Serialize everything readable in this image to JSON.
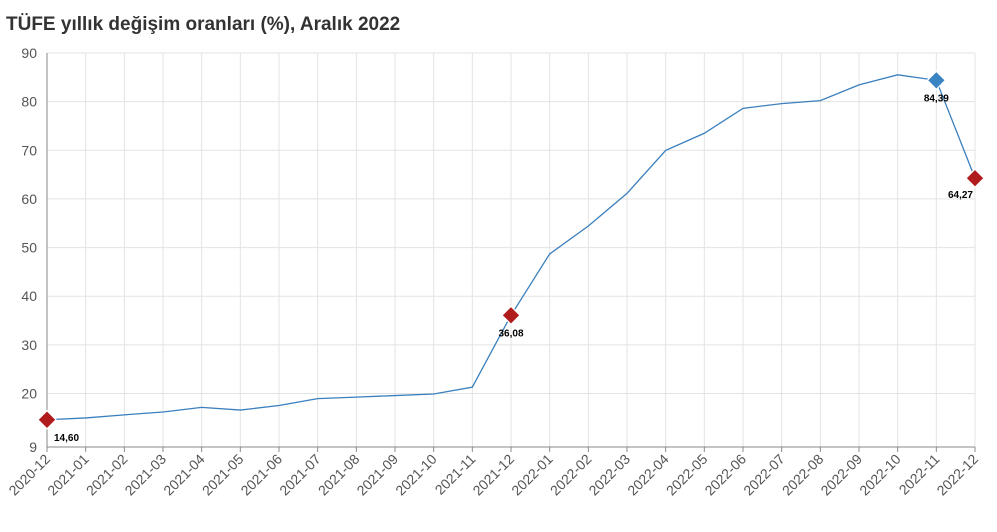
{
  "chart_data": {
    "type": "line",
    "title": "TÜFE yıllık değişim oranları (%), Aralık 2022",
    "xlabel": "",
    "ylabel": "",
    "ylim": [
      9,
      90
    ],
    "yticks": [
      9,
      20,
      30,
      40,
      50,
      60,
      70,
      80,
      90
    ],
    "grid": true,
    "legend": "none",
    "categories": [
      "2020-12",
      "2021-01",
      "2021-02",
      "2021-03",
      "2021-04",
      "2021-05",
      "2021-06",
      "2021-07",
      "2021-08",
      "2021-09",
      "2021-10",
      "2021-11",
      "2021-12",
      "2022-01",
      "2022-02",
      "2022-03",
      "2022-04",
      "2022-05",
      "2022-06",
      "2022-07",
      "2022-08",
      "2022-09",
      "2022-10",
      "2022-11",
      "2022-12"
    ],
    "series": [
      {
        "values": [
          14.6,
          14.97,
          15.61,
          16.19,
          17.14,
          16.59,
          17.53,
          18.95,
          19.25,
          19.58,
          19.89,
          21.31,
          36.08,
          48.69,
          54.44,
          61.14,
          69.97,
          73.5,
          78.62,
          79.6,
          80.21,
          83.45,
          85.51,
          84.39,
          64.27
        ],
        "color": "#3a7fbe"
      }
    ],
    "highlights": [
      {
        "category": "2020-12",
        "label": "14,60",
        "color": "#b01c1c"
      },
      {
        "category": "2021-12",
        "label": "36,08",
        "color": "#b01c1c"
      },
      {
        "category": "2022-11",
        "label": "84,39",
        "color": "#3a84c4"
      },
      {
        "category": "2022-12",
        "label": "64,27",
        "color": "#b01c1c"
      }
    ]
  }
}
